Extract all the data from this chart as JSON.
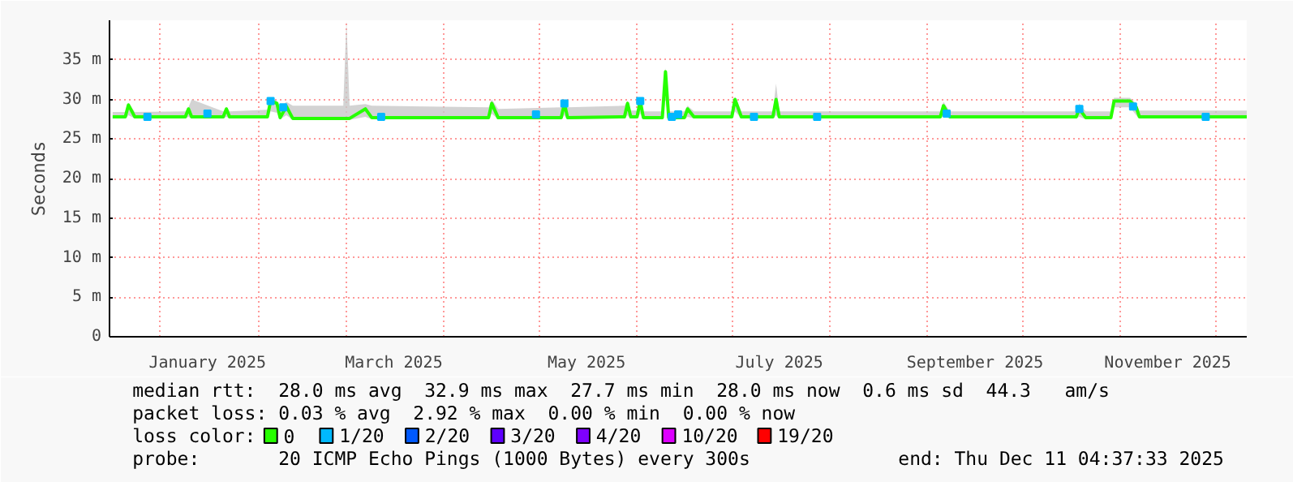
{
  "chart_data": {
    "type": "line",
    "ylabel": "Seconds",
    "legend_title": "loss color:",
    "legend": "bottom",
    "grid": true,
    "marker": "none",
    "line_style": "solid",
    "xlim": [
      "2024-12-16",
      "2025-12-11"
    ],
    "xticks": [
      {
        "value": "2025-01-01",
        "label": null
      },
      {
        "value": "2025-01-16",
        "label": "January 2025"
      },
      {
        "value": "2025-02-01",
        "label": null
      },
      {
        "value": "2025-03-01",
        "label": null
      },
      {
        "value": "2025-03-16",
        "label": "March 2025"
      },
      {
        "value": "2025-04-01",
        "label": null
      },
      {
        "value": "2025-05-01",
        "label": null
      },
      {
        "value": "2025-05-16",
        "label": "May 2025"
      },
      {
        "value": "2025-06-01",
        "label": null
      },
      {
        "value": "2025-07-01",
        "label": null
      },
      {
        "value": "2025-07-16",
        "label": "July 2025"
      },
      {
        "value": "2025-08-01",
        "label": null
      },
      {
        "value": "2025-09-01",
        "label": null
      },
      {
        "value": "2025-09-16",
        "label": "September 2025"
      },
      {
        "value": "2025-10-01",
        "label": null
      },
      {
        "value": "2025-11-01",
        "label": null
      },
      {
        "value": "2025-11-16",
        "label": "November 2025"
      },
      {
        "value": "2025-12-01",
        "label": null
      }
    ],
    "ylim": [
      0,
      40
    ],
    "yticks": [
      0,
      {
        "value": 5,
        "label": "5 m"
      },
      {
        "value": 10,
        "label": "10 m"
      },
      {
        "value": 15,
        "label": "15 m"
      },
      {
        "value": 20,
        "label": "20 m"
      },
      {
        "value": 25,
        "label": "25 m"
      },
      {
        "value": 30,
        "label": "30 m"
      },
      {
        "value": 35,
        "label": "35 m"
      }
    ],
    "series": [
      {
        "name": "0",
        "color": "#26ff00",
        "x": [
          "2024-12-17",
          "2024-12-21",
          "2024-12-22",
          "2024-12-24",
          "2025-01-09",
          "2025-01-10",
          "2025-01-11",
          "2025-01-21",
          "2025-01-22",
          "2025-01-23",
          "2025-02-04",
          "2025-02-05",
          "2025-02-07",
          "2025-02-08",
          "2025-02-10",
          "2025-02-12",
          "2025-02-28",
          "2025-03-01",
          "2025-03-02",
          "2025-03-07",
          "2025-03-09",
          "2025-04-15",
          "2025-04-16",
          "2025-04-18",
          "2025-05-08",
          "2025-05-09",
          "2025-05-10",
          "2025-05-28",
          "2025-05-29",
          "2025-05-30",
          "2025-06-01",
          "2025-06-02",
          "2025-06-03",
          "2025-06-09",
          "2025-06-10",
          "2025-06-11",
          "2025-06-16",
          "2025-06-17",
          "2025-06-19",
          "2025-07-01",
          "2025-07-02",
          "2025-07-04",
          "2025-07-14",
          "2025-07-15",
          "2025-07-16",
          "2025-09-05",
          "2025-09-06",
          "2025-09-08",
          "2025-10-18",
          "2025-10-19",
          "2025-10-21",
          "2025-10-29",
          "2025-10-30",
          "2025-11-04",
          "2025-11-06",
          "2025-11-07",
          "2025-12-11"
        ],
        "values": [
          27.8,
          27.8,
          29.3,
          27.8,
          27.8,
          28.8,
          27.8,
          27.8,
          28.8,
          27.8,
          27.8,
          29.8,
          29.5,
          27.7,
          29.1,
          27.6,
          27.6,
          27.6,
          27.6,
          28.8,
          27.7,
          27.7,
          29.5,
          27.7,
          27.7,
          29.5,
          27.7,
          27.8,
          29.5,
          27.8,
          27.8,
          29.8,
          27.7,
          27.7,
          33.5,
          27.7,
          27.7,
          28.8,
          27.8,
          27.8,
          30.0,
          27.8,
          27.8,
          30.0,
          27.8,
          27.8,
          29.2,
          27.8,
          27.8,
          28.8,
          27.7,
          27.7,
          29.8,
          29.8,
          29.0,
          27.8,
          27.8
        ],
        "lower": [
          27.6,
          27.6,
          28.0,
          27.6,
          27.6,
          27.8,
          27.6,
          27.6,
          27.8,
          27.6,
          27.6,
          28.5,
          28.3,
          27.5,
          28.0,
          27.4,
          27.4,
          27.4,
          27.4,
          27.8,
          27.5,
          27.5,
          28.2,
          27.5,
          27.5,
          28.0,
          27.5,
          27.6,
          28.0,
          27.6,
          27.6,
          28.2,
          27.5,
          27.5,
          30.0,
          27.5,
          27.5,
          27.8,
          27.6,
          27.6,
          28.5,
          27.6,
          27.6,
          28.0,
          27.6,
          27.6,
          28.0,
          27.6,
          27.6,
          27.8,
          27.5,
          27.5,
          29.0,
          29.0,
          28.0,
          27.6,
          27.6
        ],
        "upper": [
          28.4,
          28.4,
          29.6,
          28.4,
          28.5,
          29.0,
          30.0,
          28.5,
          29.0,
          28.5,
          28.7,
          30.1,
          29.8,
          29.0,
          29.7,
          29.2,
          29.2,
          39.9,
          29.2,
          29.4,
          29.2,
          29.0,
          30.0,
          28.8,
          29.0,
          29.8,
          29.0,
          29.2,
          29.8,
          28.6,
          28.6,
          30.2,
          28.5,
          28.5,
          34.0,
          28.5,
          28.5,
          29.2,
          28.5,
          28.5,
          30.3,
          28.5,
          28.5,
          32.0,
          28.5,
          28.5,
          29.7,
          28.5,
          28.5,
          29.5,
          28.5,
          28.5,
          30.2,
          30.2,
          29.5,
          28.6,
          28.6
        ]
      },
      {
        "name": "1/20",
        "color": "#00b8ff",
        "type": "scatter",
        "marker": "square",
        "x": [
          "2024-12-28",
          "2025-01-16",
          "2025-02-05",
          "2025-02-09",
          "2025-03-12",
          "2025-04-30",
          "2025-05-09",
          "2025-06-02",
          "2025-06-12",
          "2025-06-14",
          "2025-07-08",
          "2025-07-28",
          "2025-09-07",
          "2025-10-19",
          "2025-11-05",
          "2025-11-28"
        ],
        "values": [
          27.8,
          28.2,
          29.8,
          29.0,
          27.8,
          28.1,
          29.5,
          29.8,
          27.8,
          28.1,
          27.8,
          27.8,
          28.2,
          28.8,
          29.1,
          27.8
        ]
      },
      {
        "name": "2/20",
        "color": "#0059ff",
        "type": "scatter",
        "marker": "square"
      },
      {
        "name": "3/20",
        "color": "#5e00ff",
        "type": "scatter",
        "marker": "square"
      },
      {
        "name": "4/20",
        "color": "#7e00ff",
        "type": "scatter",
        "marker": "square"
      },
      {
        "name": "10/20",
        "color": "#dd00ff",
        "type": "scatter",
        "marker": "square"
      },
      {
        "name": "19/20",
        "color": "#ff0000",
        "type": "scatter",
        "marker": "square"
      }
    ],
    "annotations": [
      "median rtt:  28.0 ms avg  32.9 ms max  27.7 ms min  28.0 ms now  0.6 ms sd  44.3   am/s",
      "packet loss: 0.03 % avg  2.92 % max  0.00 % min  0.00 % now",
      "probe:       20 ICMP Echo Pings (1000 Bytes) every 300s",
      "end: Thu Dec 11 04:37:33 2025"
    ]
  }
}
